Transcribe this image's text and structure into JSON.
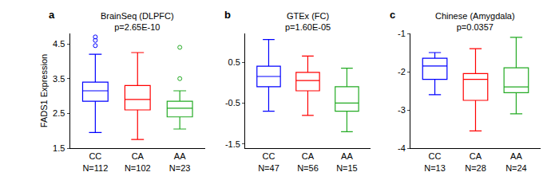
{
  "chart_data": [
    {
      "type": "box",
      "label": "a",
      "title": "BrainSeq (DLPFC)",
      "subtitle": "p=2.65E-10",
      "y_label": "FADS1 Expression",
      "categories": [
        "CC\nN=112",
        "CA\nN=102",
        "AA\nN=23"
      ],
      "colors": [
        "#0000ff",
        "#ff0000",
        "#22aa22"
      ],
      "q1": [
        2.85,
        2.6,
        2.4
      ],
      "median": [
        3.15,
        2.9,
        2.65
      ],
      "q3": [
        3.4,
        3.3,
        2.85
      ],
      "lower_whisker": [
        1.95,
        1.75,
        2.05
      ],
      "upper_whisker": [
        4.2,
        4.25,
        3.15
      ],
      "outliers": [
        [
          4.45,
          4.6,
          4.7
        ],
        [],
        [
          3.5,
          4.4
        ]
      ],
      "ylim": [
        1.5,
        4.8
      ],
      "yticks": [
        1.5,
        2.5,
        3.5,
        4.5
      ]
    },
    {
      "type": "box",
      "label": "b",
      "title": "GTEx (FC)",
      "subtitle": "p=1.60E-05",
      "categories": [
        "CC\nN=47",
        "CA\nN=56",
        "AA\nN=15"
      ],
      "colors": [
        "#0000ff",
        "#ff0000",
        "#22aa22"
      ],
      "q1": [
        -0.1,
        -0.2,
        -0.7
      ],
      "median": [
        0.15,
        0.05,
        -0.5
      ],
      "q3": [
        0.4,
        0.25,
        -0.1
      ],
      "lower_whisker": [
        -0.7,
        -0.8,
        -1.2
      ],
      "upper_whisker": [
        1.05,
        0.65,
        0.35
      ],
      "outliers": [
        [],
        [],
        []
      ],
      "ylim": [
        -1.6,
        1.2
      ],
      "yticks": [
        -1.5,
        -0.5,
        0.5
      ]
    },
    {
      "type": "box",
      "label": "c",
      "title": "Chinese (Amygdala)",
      "subtitle": "p=0.0357",
      "categories": [
        "CC\nN=13",
        "CA\nN=28",
        "AA\nN=24"
      ],
      "colors": [
        "#0000ff",
        "#ff0000",
        "#22aa22"
      ],
      "q1": [
        -2.2,
        -2.75,
        -2.55
      ],
      "median": [
        -1.85,
        -2.2,
        -2.4
      ],
      "q3": [
        -1.65,
        -2.05,
        -1.9
      ],
      "lower_whisker": [
        -2.6,
        -3.55,
        -3.1
      ],
      "upper_whisker": [
        -1.5,
        -1.4,
        -1.1
      ],
      "outliers": [
        [],
        [],
        []
      ],
      "ylim": [
        -4,
        -1
      ],
      "yticks": [
        -4,
        -3,
        -2,
        -1
      ]
    }
  ]
}
